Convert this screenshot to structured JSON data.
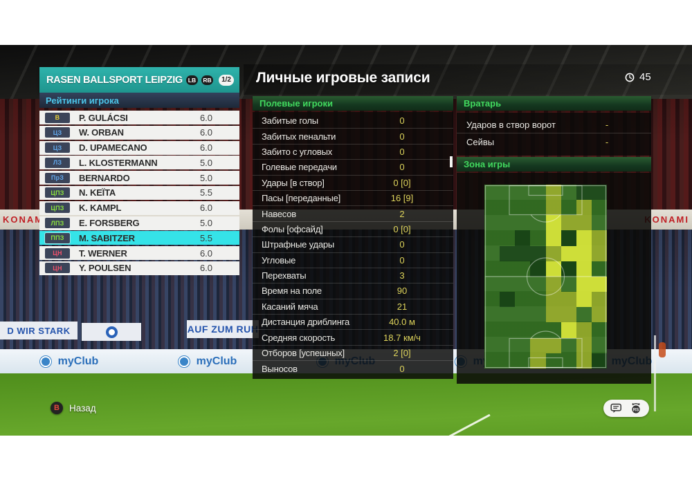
{
  "header": {
    "title": "Личные игровые записи",
    "time": "45"
  },
  "team_panel": {
    "team_name": "RASEN BALLSPORT LEIPZIG",
    "prev_button": "LB",
    "next_button": "RB",
    "page_indicator": "1/2",
    "section_title": "Рейтинги игрока",
    "players": [
      {
        "pos": "В",
        "name": "P. GULÁCSI",
        "rating": "6.0"
      },
      {
        "pos": "ЦЗ",
        "name": "W. ORBAN",
        "rating": "6.0"
      },
      {
        "pos": "ЦЗ",
        "name": "D. UPAMECANO",
        "rating": "6.0"
      },
      {
        "pos": "ЛЗ",
        "name": "L. KLOSTERMANN",
        "rating": "5.0"
      },
      {
        "pos": "ПрЗ",
        "name": "BERNARDO",
        "rating": "5.0"
      },
      {
        "pos": "ЦПЗ",
        "name": "N. KEÏTA",
        "rating": "5.5"
      },
      {
        "pos": "ЦПЗ",
        "name": "K. KAMPL",
        "rating": "6.0"
      },
      {
        "pos": "ЛПЗ",
        "name": "E. FORSBERG",
        "rating": "5.0"
      },
      {
        "pos": "ППЗ",
        "name": "M. SABITZER",
        "rating": "5.5",
        "selected": true
      },
      {
        "pos": "ЦН",
        "name": "T. WERNER",
        "rating": "6.0"
      },
      {
        "pos": "ЦН",
        "name": "Y. POULSEN",
        "rating": "6.0"
      }
    ]
  },
  "field_players": {
    "section_title": "Полевые игроки",
    "stats": [
      {
        "label": "Забитые голы",
        "value": "0"
      },
      {
        "label": "Забитых пенальти",
        "value": "0"
      },
      {
        "label": "Забито с угловых",
        "value": "0"
      },
      {
        "label": "Голевые передачи",
        "value": "0"
      },
      {
        "label": "Удары [в створ]",
        "value": "0 [0]"
      },
      {
        "label": "Пасы [переданные]",
        "value": "16 [9]"
      },
      {
        "label": "Навесов",
        "value": "2"
      },
      {
        "label": "Фолы [офсайд]",
        "value": "0 [0]"
      },
      {
        "label": "Штрафные удары",
        "value": "0"
      },
      {
        "label": "Угловые",
        "value": "0"
      },
      {
        "label": "Перехваты",
        "value": "3"
      },
      {
        "label": "Время на поле",
        "value": "90"
      },
      {
        "label": "Касаний мяча",
        "value": "21"
      },
      {
        "label": "Дистанция дриблинга",
        "value": "40.0 м"
      },
      {
        "label": "Средняя скорость",
        "value": "18.7 км/ч"
      },
      {
        "label": "Отборов [успешных]",
        "value": "2 [0]"
      },
      {
        "label": "Выносов",
        "value": "0"
      }
    ]
  },
  "goalkeeper": {
    "section_title": "Вратарь",
    "stats": [
      {
        "label": "Ударов в створ ворот",
        "value": "-"
      },
      {
        "label": "Сейвы",
        "value": "-"
      }
    ]
  },
  "zone": {
    "section_title": "Зона игры",
    "heatmap": {
      "type": "heatmap",
      "cols": 8,
      "rows": 12,
      "grid": [
        [
          2,
          2,
          2,
          2,
          3,
          2,
          1,
          1
        ],
        [
          2,
          2,
          2,
          2,
          3,
          2,
          3,
          2
        ],
        [
          2,
          2,
          2,
          2,
          4,
          3,
          3,
          2
        ],
        [
          2,
          2,
          1,
          2,
          4,
          1,
          4,
          3
        ],
        [
          2,
          1,
          1,
          1,
          3,
          4,
          4,
          3
        ],
        [
          2,
          2,
          2,
          1,
          4,
          1,
          4,
          2
        ],
        [
          2,
          2,
          2,
          2,
          3,
          2,
          4,
          4
        ],
        [
          2,
          1,
          2,
          2,
          3,
          3,
          4,
          3
        ],
        [
          2,
          2,
          2,
          2,
          3,
          3,
          2,
          3
        ],
        [
          2,
          2,
          2,
          2,
          2,
          4,
          3,
          2
        ],
        [
          2,
          2,
          2,
          3,
          3,
          2,
          3,
          2
        ],
        [
          2,
          2,
          2,
          3,
          2,
          2,
          3,
          1
        ]
      ],
      "palette": {
        "0": "transparent",
        "1": "rgba(14,52,16,0.62)",
        "2": "rgba(58,112,34,0.45)",
        "3": "rgba(164,178,44,0.82)",
        "4": "rgba(214,228,58,0.95)"
      }
    }
  },
  "footer": {
    "back_button_glyph": "B",
    "back_label": "Назад"
  },
  "stadium": {
    "konami_text": "KONAMI",
    "banner_left": "D WIR STARK",
    "banner_right": "AUF ZUM RUH",
    "ad_text": "myClub"
  },
  "colors": {
    "accent_teal": "#23a39c",
    "selected_cyan": "#35e3e8",
    "value_yellow": "#ded45c",
    "section_green": "#41d95e",
    "pos_gk": "#e6cf3a",
    "pos_df": "#62a8ec",
    "pos_mf": "#8be23e",
    "pos_fw": "#f0526b"
  }
}
